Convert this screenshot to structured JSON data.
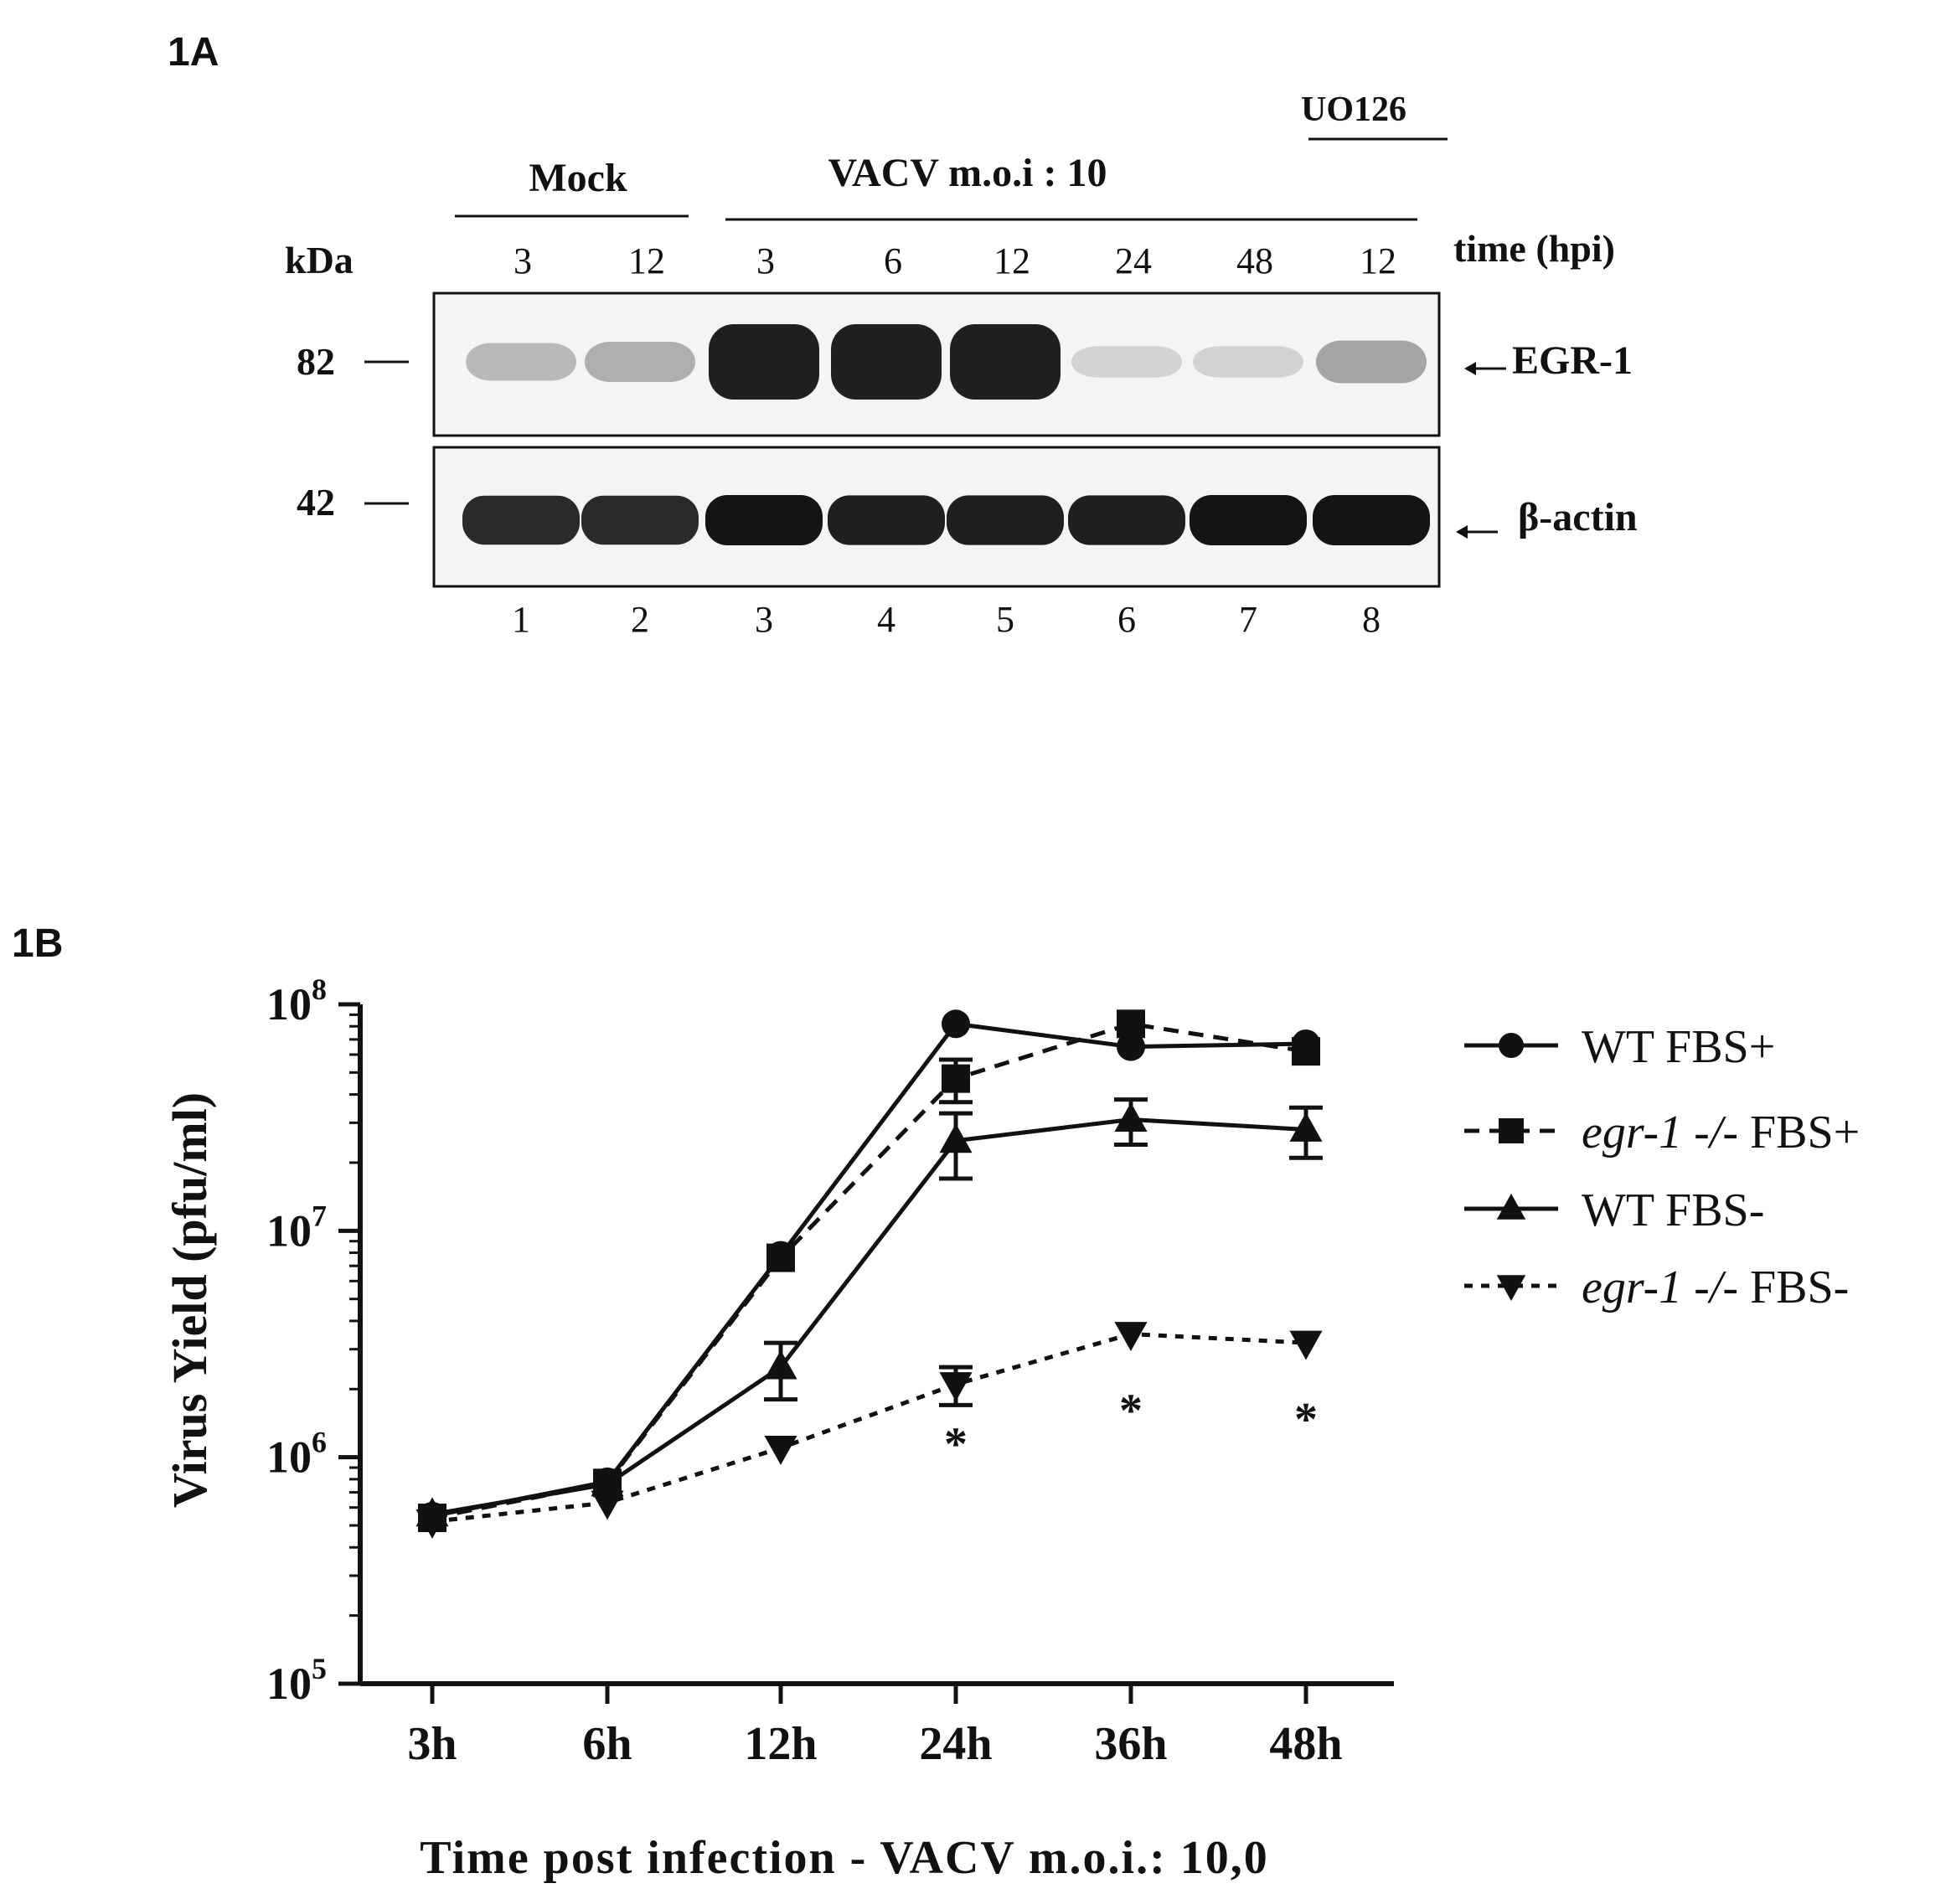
{
  "panel_a": {
    "label": "1A",
    "kda_label": "kDa",
    "group_mock": "Mock",
    "group_vacv": "VACV m.o.i : 10",
    "group_inhibitor": "UO126",
    "time_label": "time (hpi)",
    "time_points": [
      "3",
      "12",
      "3",
      "6",
      "12",
      "24",
      "48",
      "12"
    ],
    "lane_numbers": [
      "1",
      "2",
      "3",
      "4",
      "5",
      "6",
      "7",
      "8"
    ],
    "marker_upper": "82",
    "marker_lower": "42",
    "band_upper": "EGR-1",
    "band_lower": "β-actin",
    "egr1_intensity": [
      0.25,
      0.3,
      1.0,
      1.0,
      1.0,
      0.12,
      0.12,
      0.35
    ],
    "actin_intensity": [
      0.9,
      0.9,
      1.0,
      0.95,
      0.95,
      0.95,
      1.0,
      1.0
    ]
  },
  "panel_b": {
    "label": "1B",
    "chart_data": {
      "type": "line",
      "ylabel": "Virus Yield (pfu/ml)",
      "xlabel": "Time post infection - VACV m.o.i.: 10,0",
      "categories": [
        "3h",
        "6h",
        "12h",
        "24h",
        "36h",
        "48h"
      ],
      "yscale": "log",
      "ylim": [
        100000,
        100000000
      ],
      "yticks": [
        {
          "base": "10",
          "exp": "5"
        },
        {
          "base": "10",
          "exp": "6"
        },
        {
          "base": "10",
          "exp": "7"
        },
        {
          "base": "10",
          "exp": "8"
        }
      ],
      "legend_position": "right",
      "series": [
        {
          "name_italic": "",
          "name": "WT FBS+",
          "marker": "circle",
          "dash": "solid",
          "values": [
            550000,
            780000,
            7800000,
            82000000,
            65000000,
            67000000
          ],
          "errors": [
            0,
            0,
            0,
            0,
            0,
            0
          ]
        },
        {
          "name_italic": "egr-1 -/-",
          "name": " FBS+",
          "marker": "square",
          "dash": "dashed",
          "values": [
            540000,
            770000,
            7600000,
            47000000,
            82000000,
            62000000
          ],
          "errors": [
            0,
            0,
            0,
            10000000,
            0,
            0
          ]
        },
        {
          "name_italic": "",
          "name": "WT FBS-",
          "marker": "triangle-up",
          "dash": "solid",
          "values": [
            560000,
            760000,
            2500000,
            25000000,
            31000000,
            28000000
          ],
          "errors": [
            0,
            0,
            700000,
            8000000,
            7000000,
            7000000
          ]
        },
        {
          "name_italic": "egr-1 -/-",
          "name": " FBS-",
          "marker": "triangle-down",
          "dash": "dotted",
          "values": [
            520000,
            630000,
            1100000,
            2100000,
            3500000,
            3200000
          ],
          "errors": [
            0,
            0,
            0,
            400000,
            0,
            0
          ]
        }
      ],
      "significance": [
        {
          "category": "24h",
          "text": "*"
        },
        {
          "category": "36h",
          "text": "*"
        },
        {
          "category": "48h",
          "text": "*"
        }
      ]
    }
  }
}
